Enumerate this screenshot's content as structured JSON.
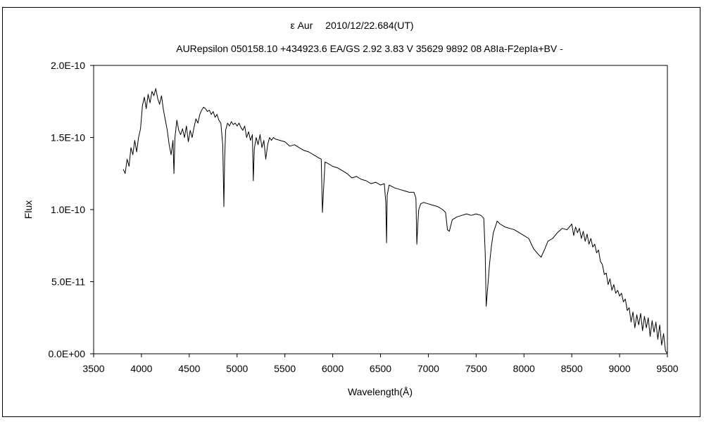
{
  "chart_data": {
    "type": "line",
    "title": "ε Aur　 2010/12/22.684(UT)",
    "subtitle": "AURepsilon 050158.10 +434923.6 EA/GS 2.92 3.83 V 35629 9892 08 A8Ia-F2epIa+BV -",
    "xlabel": "Wavelength(Å)",
    "ylabel": "Flux",
    "xlim": [
      3500,
      9500
    ],
    "ylim": [
      0,
      2e-10
    ],
    "xticks": [
      "3500",
      "4000",
      "4500",
      "5000",
      "5500",
      "6000",
      "6500",
      "7000",
      "7500",
      "8000",
      "8500",
      "9000",
      "9500"
    ],
    "yticks": [
      "0.0E+00",
      "5.0E-11",
      "1.0E-10",
      "1.5E-10",
      "2.0E-10"
    ],
    "grid": false,
    "series": [
      {
        "x": [
          3810,
          3830,
          3850,
          3870,
          3890,
          3910,
          3930,
          3950,
          3970,
          3990,
          4010,
          4030,
          4050,
          4070,
          4090,
          4110,
          4130,
          4150,
          4170,
          4190,
          4210,
          4230,
          4250,
          4270,
          4290,
          4310,
          4330,
          4340,
          4350,
          4370,
          4390,
          4410,
          4430,
          4450,
          4470,
          4490,
          4510,
          4530,
          4550,
          4570,
          4590,
          4610,
          4630,
          4650,
          4670,
          4690,
          4710,
          4730,
          4750,
          4770,
          4790,
          4810,
          4830,
          4850,
          4862,
          4870,
          4880,
          4900,
          4920,
          4940,
          4960,
          4980,
          5000,
          5020,
          5040,
          5060,
          5080,
          5100,
          5120,
          5140,
          5160,
          5170,
          5180,
          5200,
          5220,
          5240,
          5260,
          5280,
          5300,
          5320,
          5340,
          5360,
          5380,
          5400,
          5450,
          5500,
          5550,
          5600,
          5650,
          5700,
          5750,
          5800,
          5850,
          5880,
          5893,
          5905,
          5920,
          5950,
          6000,
          6050,
          6100,
          6150,
          6200,
          6250,
          6300,
          6350,
          6400,
          6450,
          6500,
          6540,
          6555,
          6563,
          6570,
          6590,
          6620,
          6650,
          6700,
          6750,
          6800,
          6850,
          6870,
          6880,
          6890,
          6900,
          6920,
          6950,
          7000,
          7050,
          7100,
          7150,
          7180,
          7200,
          7220,
          7250,
          7300,
          7350,
          7400,
          7450,
          7500,
          7550,
          7580,
          7595,
          7605,
          7620,
          7640,
          7660,
          7680,
          7700,
          7720,
          7750,
          7800,
          7850,
          7900,
          7950,
          8000,
          8050,
          8100,
          8150,
          8180,
          8200,
          8220,
          8250,
          8300,
          8350,
          8400,
          8450,
          8500,
          8520,
          8540,
          8560,
          8580,
          8600,
          8620,
          8640,
          8660,
          8680,
          8700,
          8720,
          8740,
          8760,
          8780,
          8800,
          8820,
          8840,
          8860,
          8880,
          8900,
          8920,
          8940,
          8960,
          8980,
          9000,
          9020,
          9040,
          9060,
          9080,
          9100,
          9120,
          9140,
          9160,
          9180,
          9200,
          9220,
          9240,
          9260,
          9280,
          9300,
          9320,
          9340,
          9360,
          9380,
          9400,
          9420,
          9440,
          9460,
          9480,
          9500
        ],
        "y": [
          1.28e-10,
          1.25e-10,
          1.35e-10,
          1.3e-10,
          1.43e-10,
          1.38e-10,
          1.48e-10,
          1.4e-10,
          1.5e-10,
          1.56e-10,
          1.72e-10,
          1.78e-10,
          1.7e-10,
          1.8e-10,
          1.74e-10,
          1.82e-10,
          1.79e-10,
          1.84e-10,
          1.77e-10,
          1.73e-10,
          1.79e-10,
          1.69e-10,
          1.62e-10,
          1.55e-10,
          1.45e-10,
          1.38e-10,
          1.48e-10,
          1.25e-10,
          1.5e-10,
          1.62e-10,
          1.55e-10,
          1.52e-10,
          1.56e-10,
          1.5e-10,
          1.58e-10,
          1.47e-10,
          1.55e-10,
          1.5e-10,
          1.57e-10,
          1.63e-10,
          1.6e-10,
          1.66e-10,
          1.69e-10,
          1.71e-10,
          1.7e-10,
          1.68e-10,
          1.69e-10,
          1.66e-10,
          1.68e-10,
          1.64e-10,
          1.66e-10,
          1.62e-10,
          1.6e-10,
          1.45e-10,
          1.02e-10,
          1.35e-10,
          1.55e-10,
          1.6e-10,
          1.58e-10,
          1.61e-10,
          1.59e-10,
          1.6e-10,
          1.58e-10,
          1.6e-10,
          1.57e-10,
          1.55e-10,
          1.58e-10,
          1.5e-10,
          1.54e-10,
          1.48e-10,
          1.52e-10,
          1.2e-10,
          1.42e-10,
          1.5e-10,
          1.45e-10,
          1.52e-10,
          1.43e-10,
          1.48e-10,
          1.35e-10,
          1.45e-10,
          1.5e-10,
          1.48e-10,
          1.5e-10,
          1.49e-10,
          1.48e-10,
          1.47e-10,
          1.44e-10,
          1.45e-10,
          1.43e-10,
          1.41e-10,
          1.4e-10,
          1.38e-10,
          1.36e-10,
          1.35e-10,
          9.8e-11,
          1.15e-10,
          1.33e-10,
          1.32e-10,
          1.3e-10,
          1.29e-10,
          1.27e-10,
          1.25e-10,
          1.22e-10,
          1.23e-10,
          1.21e-10,
          1.2e-10,
          1.18e-10,
          1.19e-10,
          1.17e-10,
          1.18e-10,
          1.05e-10,
          7.7e-11,
          1.1e-10,
          1.17e-10,
          1.16e-10,
          1.15e-10,
          1.14e-10,
          1.13e-10,
          1.12e-10,
          1.12e-10,
          1.08e-10,
          7.6e-11,
          9e-11,
          1e-10,
          1.04e-10,
          1.05e-10,
          1.04e-10,
          1.03e-10,
          1.02e-10,
          1e-10,
          9.8e-11,
          8.6e-11,
          8.5e-11,
          9.3e-11,
          9.5e-11,
          9.6e-11,
          9.7e-11,
          9.6e-11,
          9.7e-11,
          9.6e-11,
          9.4e-11,
          7e-11,
          3.3e-11,
          4.5e-11,
          6.2e-11,
          7.5e-11,
          8.4e-11,
          8.8e-11,
          9.2e-11,
          9e-11,
          8.8e-11,
          8.7e-11,
          8.6e-11,
          8.4e-11,
          8.2e-11,
          8e-11,
          7.3e-11,
          6.9e-11,
          6.7e-11,
          7e-11,
          7.3e-11,
          7.8e-11,
          8e-11,
          8.4e-11,
          8.7e-11,
          8.6e-11,
          9e-11,
          8.2e-11,
          8.8e-11,
          8.4e-11,
          8.7e-11,
          8e-11,
          8.5e-11,
          7.8e-11,
          8.3e-11,
          7.6e-11,
          8e-11,
          7.4e-11,
          7.6e-11,
          7e-11,
          7.2e-11,
          6.4e-11,
          6.2e-11,
          5.5e-11,
          5.6e-11,
          4.8e-11,
          5.2e-11,
          4.4e-11,
          4.8e-11,
          4.2e-11,
          4.4e-11,
          4e-11,
          4.2e-11,
          3.6e-11,
          3.8e-11,
          3e-11,
          3.2e-11,
          2.2e-11,
          2.9e-11,
          1.8e-11,
          2.7e-11,
          2e-11,
          2.8e-11,
          1.6e-11,
          2.6e-11,
          1.8e-11,
          2.5e-11,
          1.2e-11,
          2.3e-11,
          1.5e-11,
          2.2e-11,
          1e-11,
          2e-11,
          6e-12,
          1.4e-11,
          2e-12,
          0.0
        ]
      }
    ]
  }
}
